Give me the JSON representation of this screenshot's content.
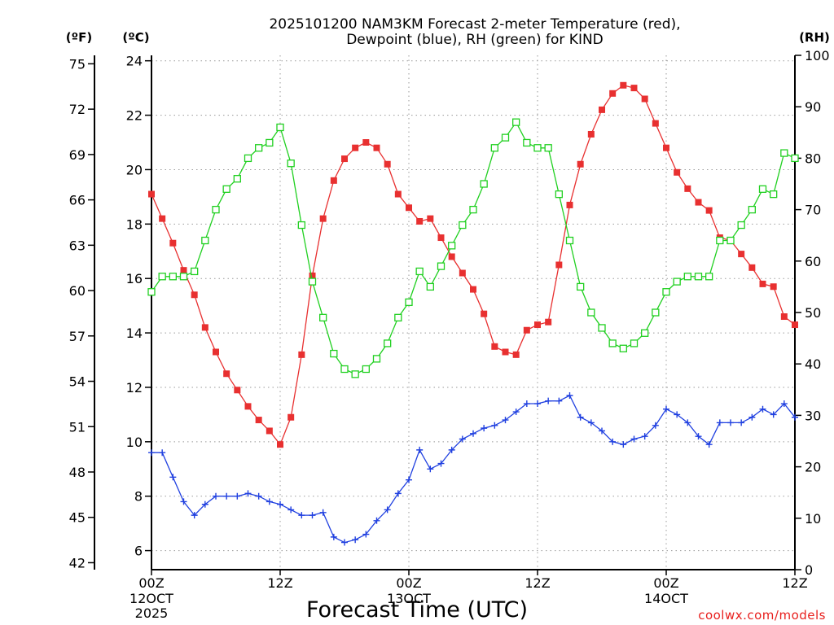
{
  "chart_data": {
    "type": "line",
    "title_line1": "2025101200 NAM3KM Forecast 2-meter Temperature (red),",
    "title_line2": "Dewpoint (blue), RH (green) for KIND",
    "xlabel": "Forecast Time (UTC)",
    "credit": "coolwx.com/models",
    "units": {
      "fahrenheit": "(ºF)",
      "celsius": "(ºC)",
      "rh": "(RH)"
    },
    "x_range_hours": [
      0,
      60
    ],
    "x_ticks": [
      {
        "hour": 0,
        "line1": "00Z",
        "line2": "12OCT",
        "line3": "2025"
      },
      {
        "hour": 12,
        "line1": "12Z",
        "line2": "",
        "line3": ""
      },
      {
        "hour": 24,
        "line1": "00Z",
        "line2": "13OCT",
        "line3": ""
      },
      {
        "hour": 36,
        "line1": "12Z",
        "line2": "",
        "line3": ""
      },
      {
        "hour": 48,
        "line1": "00Z",
        "line2": "14OCT",
        "line3": ""
      },
      {
        "hour": 60,
        "line1": "12Z",
        "line2": "",
        "line3": ""
      }
    ],
    "celsius_range": [
      5.3,
      24.2
    ],
    "celsius_ticks": [
      "6",
      "8",
      "10",
      "12",
      "14",
      "16",
      "18",
      "20",
      "22",
      "24"
    ],
    "fahrenheit_ticks": [
      "42",
      "45",
      "48",
      "51",
      "54",
      "57",
      "60",
      "63",
      "66",
      "69",
      "72",
      "75"
    ],
    "rh_range": [
      0,
      100
    ],
    "rh_ticks": [
      "0",
      "10",
      "20",
      "30",
      "40",
      "50",
      "60",
      "70",
      "80",
      "90",
      "100"
    ],
    "hours": [
      0,
      1,
      2,
      3,
      4,
      5,
      6,
      7,
      8,
      9,
      10,
      11,
      12,
      13,
      14,
      15,
      16,
      17,
      18,
      19,
      20,
      21,
      22,
      23,
      24,
      25,
      26,
      27,
      28,
      29,
      30,
      31,
      32,
      33,
      34,
      35,
      36,
      37,
      38,
      39,
      40,
      41,
      42,
      43,
      44,
      45,
      46,
      47,
      48,
      49,
      50,
      51,
      52,
      53,
      54,
      55,
      56,
      57,
      58,
      59,
      60
    ],
    "series": [
      {
        "name": "Temperature",
        "unit": "C",
        "color": "#e83030",
        "marker": "filled-square",
        "values": [
          19.1,
          18.2,
          17.3,
          16.3,
          15.4,
          14.2,
          13.3,
          12.5,
          11.9,
          11.3,
          10.8,
          10.4,
          9.9,
          10.9,
          13.2,
          16.1,
          18.2,
          19.6,
          20.4,
          20.8,
          21.0,
          20.8,
          20.2,
          19.1,
          18.6,
          18.1,
          18.2,
          17.5,
          16.8,
          16.2,
          15.6,
          14.7,
          13.5,
          13.3,
          13.2,
          14.1,
          14.3,
          14.4,
          16.5,
          18.7,
          20.2,
          21.3,
          22.2,
          22.8,
          23.1,
          23.0,
          22.6,
          21.7,
          20.8,
          19.9,
          19.3,
          18.8,
          18.5,
          17.5,
          17.4,
          16.9,
          16.4,
          15.8,
          15.7,
          14.6,
          14.3
        ]
      },
      {
        "name": "Dewpoint",
        "unit": "C",
        "color": "#2040e0",
        "marker": "plus",
        "values": [
          9.6,
          9.6,
          8.7,
          7.8,
          7.3,
          7.7,
          8.0,
          8.0,
          8.0,
          8.1,
          8.0,
          7.8,
          7.7,
          7.5,
          7.3,
          7.3,
          7.4,
          6.5,
          6.3,
          6.4,
          6.6,
          7.1,
          7.5,
          8.1,
          8.6,
          9.7,
          9.0,
          9.2,
          9.7,
          10.1,
          10.3,
          10.5,
          10.6,
          10.8,
          11.1,
          11.4,
          11.4,
          11.5,
          11.5,
          11.7,
          10.9,
          10.7,
          10.4,
          10.0,
          9.9,
          10.1,
          10.2,
          10.6,
          11.2,
          11.0,
          10.7,
          10.2,
          9.9,
          10.7,
          10.7,
          10.7,
          10.9,
          11.2,
          11.0,
          11.4,
          10.9
        ]
      },
      {
        "name": "Relative Humidity",
        "unit": "%",
        "color": "#20d020",
        "marker": "open-square",
        "values": [
          54,
          57,
          57,
          57,
          58,
          64,
          70,
          74,
          76,
          80,
          82,
          83,
          86,
          79,
          67,
          56,
          49,
          42,
          39,
          38,
          39,
          41,
          44,
          49,
          52,
          58,
          55,
          59,
          63,
          67,
          70,
          75,
          82,
          84,
          87,
          83,
          82,
          82,
          73,
          64,
          55,
          50,
          47,
          44,
          43,
          44,
          46,
          50,
          54,
          56,
          57,
          57,
          57,
          64,
          64,
          67,
          70,
          74,
          73,
          81,
          80
        ]
      }
    ]
  }
}
